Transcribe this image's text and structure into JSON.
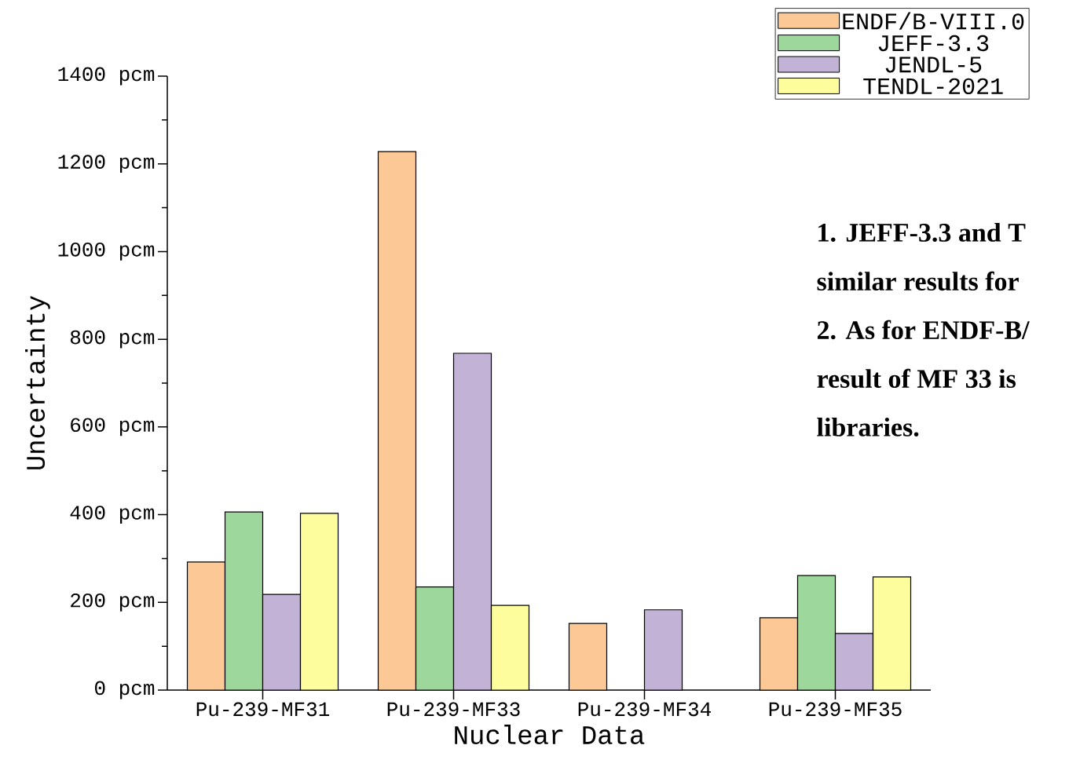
{
  "chart_data": {
    "type": "bar",
    "xlabel": "Nuclear Data",
    "ylabel": "Uncertainty",
    "categories": [
      "Pu-239-MF31",
      "Pu-239-MF33",
      "Pu-239-MF34",
      "Pu-239-MF35"
    ],
    "series": [
      {
        "name": "ENDF/B-VIII.0",
        "color": "#fbc896",
        "values": [
          292,
          1228,
          152,
          165
        ]
      },
      {
        "name": "JEFF-3.3",
        "color": "#9dd79b",
        "values": [
          406,
          235,
          null,
          261
        ]
      },
      {
        "name": "JENDL-5",
        "color": "#c2b2d6",
        "values": [
          218,
          768,
          183,
          129
        ]
      },
      {
        "name": "TENDL-2021",
        "color": "#fefd9e",
        "values": [
          403,
          193,
          null,
          258
        ]
      }
    ],
    "ylim": [
      0,
      1400
    ],
    "yticks": [
      {
        "value": 0,
        "label": "0 pcm"
      },
      {
        "value": 200,
        "label": "200 pcm"
      },
      {
        "value": 400,
        "label": "400 pcm"
      },
      {
        "value": 600,
        "label": "600 pcm"
      },
      {
        "value": 800,
        "label": "800 pcm"
      },
      {
        "value": 1000,
        "label": "1000 pcm"
      },
      {
        "value": 1200,
        "label": "1200 pcm"
      },
      {
        "value": 1400,
        "label": "1400 pcm"
      }
    ],
    "grid": false,
    "legend": "top right",
    "annotations": [
      "1.  JEFF-3.3 and T",
      "similar results for",
      "2. As for ENDF-B/",
      "result of MF 33 is",
      "libraries."
    ]
  }
}
